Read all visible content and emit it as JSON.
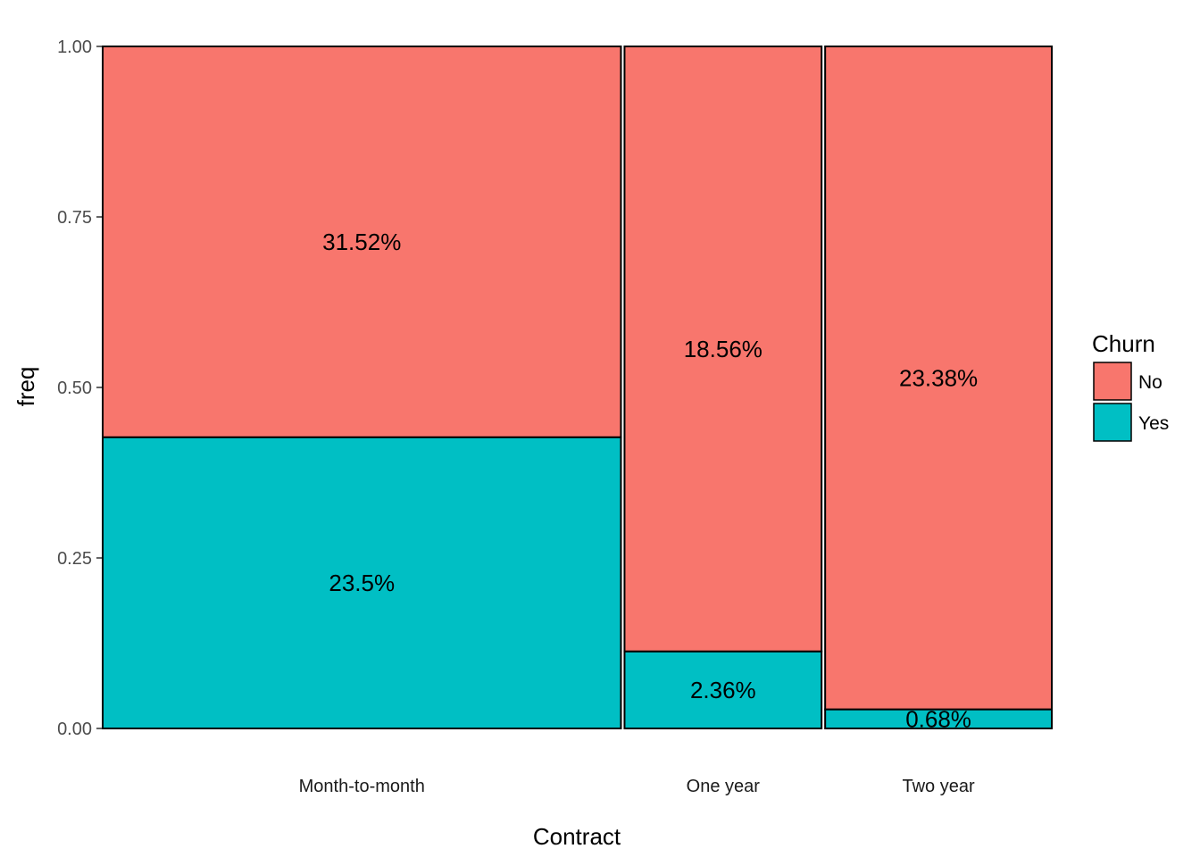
{
  "chart_data": {
    "type": "mosaic",
    "xlabel": "Contract",
    "ylabel": "freq",
    "ylim": [
      0,
      1
    ],
    "y_ticks": [
      "0.00",
      "0.25",
      "0.50",
      "0.75",
      "1.00"
    ],
    "grid": false,
    "legend_position": "right",
    "legend": {
      "title": "Churn",
      "entries": [
        {
          "name": "No",
          "color": "#F8766D"
        },
        {
          "name": "Yes",
          "color": "#00BFC4"
        }
      ]
    },
    "categories": [
      "Month-to-month",
      "One year",
      "Two year"
    ],
    "column_shares": [
      55.02,
      20.92,
      24.06
    ],
    "series": [
      {
        "name": "Yes",
        "color": "#00BFC4",
        "values": [
          0.427,
          0.113,
          0.028
        ],
        "labels": [
          "23.5%",
          "2.36%",
          "0.68%"
        ]
      },
      {
        "name": "No",
        "color": "#F8766D",
        "values": [
          0.573,
          0.887,
          0.972
        ],
        "labels": [
          "31.52%",
          "18.56%",
          "23.38%"
        ]
      }
    ]
  }
}
